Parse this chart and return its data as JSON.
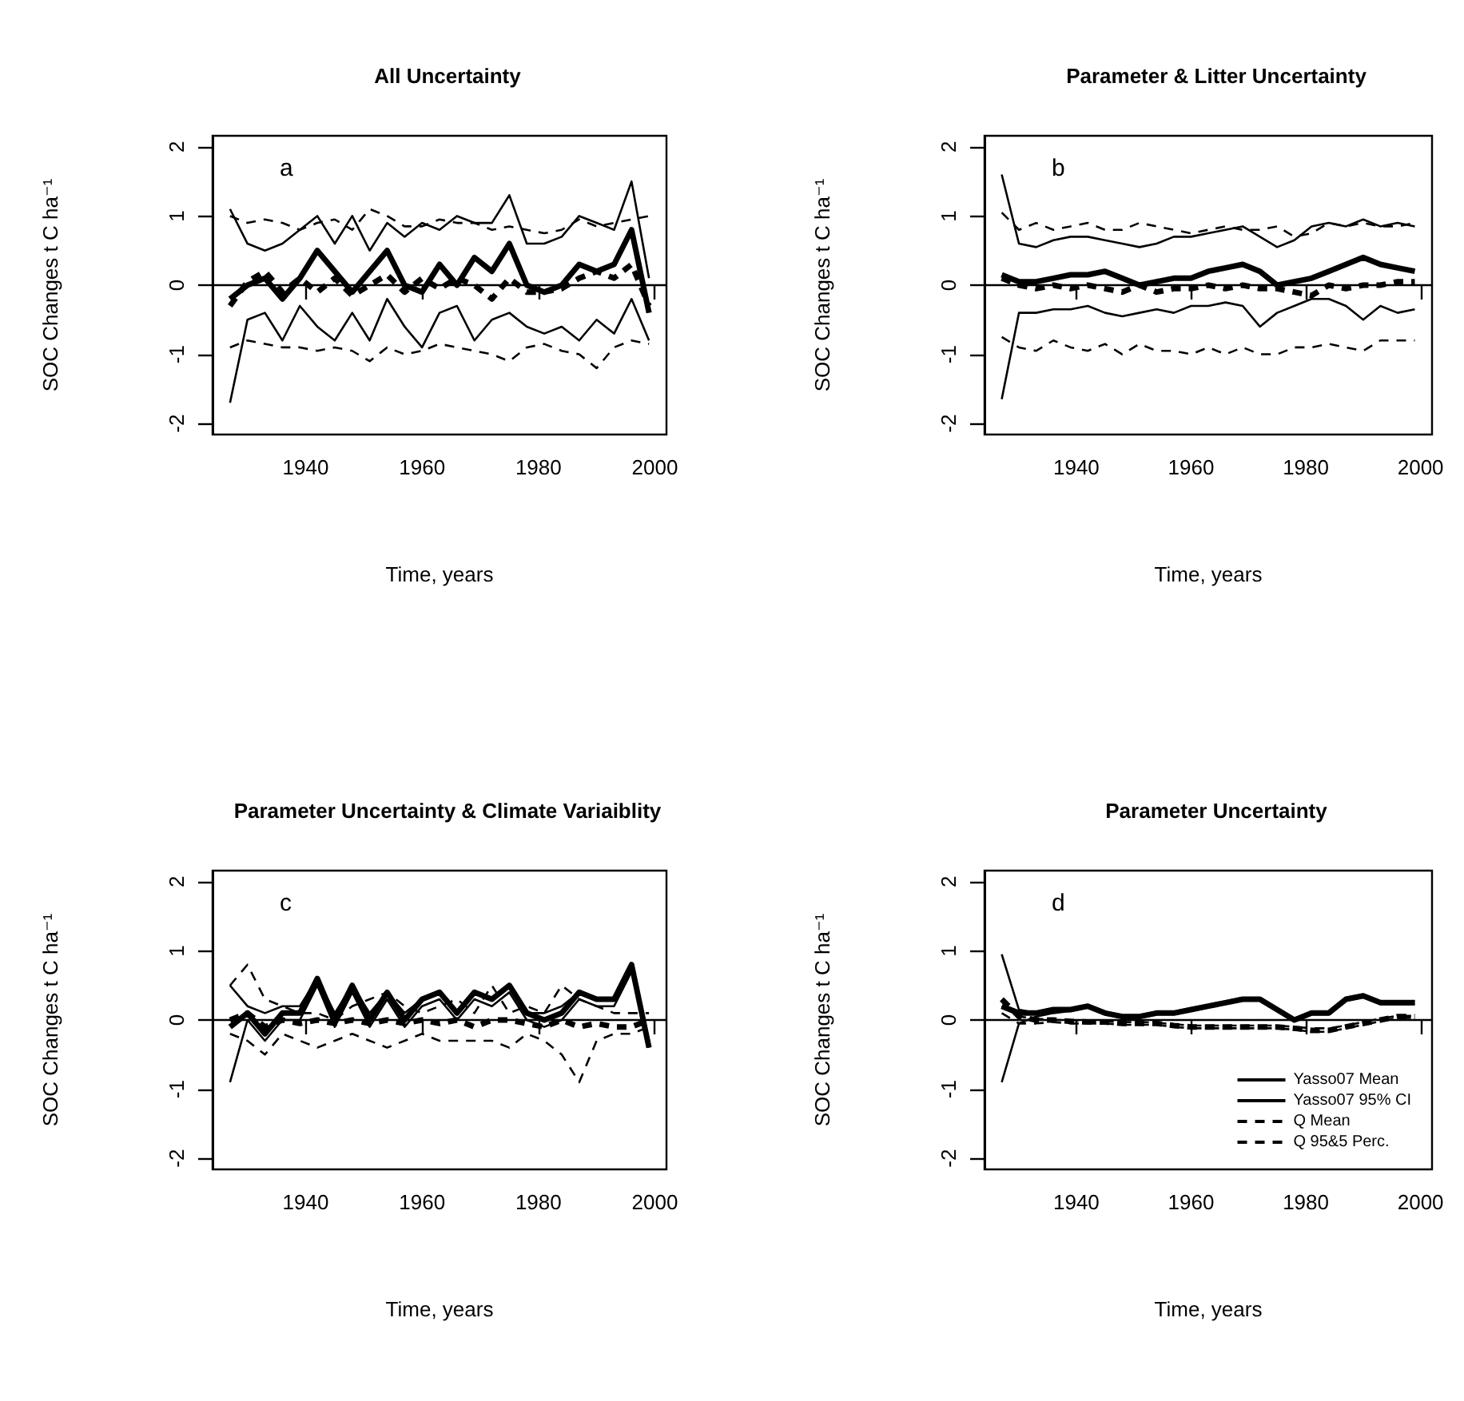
{
  "chart_data": [
    {
      "type": "line",
      "title": "All Uncertainty",
      "xlabel": "Time, years",
      "ylabel": "SOC Changes t C ha⁻¹",
      "annotations": [
        "a"
      ],
      "x": [
        1927,
        1930,
        1933,
        1936,
        1939,
        1942,
        1945,
        1948,
        1951,
        1954,
        1957,
        1960,
        1963,
        1966,
        1969,
        1972,
        1975,
        1978,
        1981,
        1984,
        1987,
        1990,
        1993,
        1996,
        1999
      ],
      "xlim": [
        1924,
        2002
      ],
      "xticks": [
        1940,
        1960,
        1980,
        2000
      ],
      "ylim": [
        -2.16,
        2.16
      ],
      "yticks": [
        -2,
        -1,
        0,
        1,
        2
      ],
      "ref_lines": [
        {
          "axis": "y",
          "value": 0,
          "color": "#000000"
        }
      ],
      "series": [
        {
          "color": "#000000",
          "line_style": "solid",
          "values": [
            -0.2,
            0.0,
            0.1,
            -0.2,
            0.1,
            0.5,
            0.2,
            -0.1,
            0.2,
            0.5,
            0.0,
            -0.1,
            0.3,
            0.0,
            0.4,
            0.2,
            0.6,
            0.0,
            -0.1,
            0.0,
            0.3,
            0.2,
            0.3,
            0.8,
            -0.4
          ]
        },
        {
          "color": "#000000",
          "line_style": "solid",
          "values": [
            1.1,
            0.6,
            0.5,
            0.6,
            0.8,
            1.0,
            0.6,
            1.0,
            0.5,
            0.9,
            0.7,
            0.9,
            0.8,
            1.0,
            0.9,
            0.9,
            1.3,
            0.6,
            0.6,
            0.7,
            1.0,
            0.9,
            0.8,
            1.5,
            0.1
          ]
        },
        {
          "color": "#000000",
          "line_style": "solid",
          "values": [
            -1.7,
            -0.5,
            -0.4,
            -0.8,
            -0.3,
            -0.6,
            -0.8,
            -0.4,
            -0.8,
            -0.2,
            -0.6,
            -0.9,
            -0.4,
            -0.3,
            -0.8,
            -0.5,
            -0.4,
            -0.6,
            -0.7,
            -0.6,
            -0.8,
            -0.5,
            -0.7,
            -0.2,
            -0.8
          ]
        },
        {
          "color": "#000000",
          "line_style": "dashed",
          "values": [
            -0.3,
            0.05,
            0.2,
            -0.1,
            0.1,
            -0.1,
            0.1,
            -0.15,
            0.0,
            0.15,
            -0.1,
            0.1,
            -0.05,
            0.1,
            0.0,
            -0.2,
            0.1,
            -0.1,
            -0.1,
            -0.05,
            0.1,
            0.2,
            0.1,
            0.3,
            -0.3
          ]
        },
        {
          "color": "#000000",
          "line_style": "dashed",
          "values": [
            1.0,
            0.9,
            0.95,
            0.9,
            0.8,
            0.9,
            0.95,
            0.8,
            1.1,
            1.0,
            0.85,
            0.85,
            0.95,
            0.9,
            0.9,
            0.8,
            0.85,
            0.8,
            0.75,
            0.8,
            0.95,
            0.85,
            0.9,
            0.95,
            1.0
          ]
        },
        {
          "color": "#000000",
          "line_style": "dashed",
          "values": [
            -0.9,
            -0.8,
            -0.85,
            -0.9,
            -0.9,
            -0.95,
            -0.9,
            -0.95,
            -1.1,
            -0.9,
            -1.0,
            -0.95,
            -0.85,
            -0.9,
            -0.95,
            -1.0,
            -1.1,
            -0.9,
            -0.85,
            -0.95,
            -1.0,
            -1.2,
            -0.9,
            -0.8,
            -0.85
          ]
        }
      ]
    },
    {
      "type": "line",
      "title": "Parameter & Litter Uncertainty",
      "xlabel": "Time, years",
      "ylabel": "SOC Changes t C ha⁻¹",
      "annotations": [
        "b"
      ],
      "x": [
        1927,
        1930,
        1933,
        1936,
        1939,
        1942,
        1945,
        1948,
        1951,
        1954,
        1957,
        1960,
        1963,
        1966,
        1969,
        1972,
        1975,
        1978,
        1981,
        1984,
        1987,
        1990,
        1993,
        1996,
        1999
      ],
      "xlim": [
        1924,
        2002
      ],
      "xticks": [
        1940,
        1960,
        1980,
        2000
      ],
      "ylim": [
        -2.16,
        2.16
      ],
      "yticks": [
        -2,
        -1,
        0,
        1,
        2
      ],
      "ref_lines": [
        {
          "axis": "y",
          "value": 0,
          "color": "#000000"
        }
      ],
      "series": [
        {
          "color": "#000000",
          "line_style": "solid",
          "values": [
            0.15,
            0.05,
            0.05,
            0.1,
            0.15,
            0.15,
            0.2,
            0.1,
            0.0,
            0.05,
            0.1,
            0.1,
            0.2,
            0.25,
            0.3,
            0.2,
            0.0,
            0.05,
            0.1,
            0.2,
            0.3,
            0.4,
            0.3,
            0.25,
            0.2
          ]
        },
        {
          "color": "#000000",
          "line_style": "solid",
          "values": [
            1.6,
            0.6,
            0.55,
            0.65,
            0.7,
            0.7,
            0.65,
            0.6,
            0.55,
            0.6,
            0.7,
            0.7,
            0.75,
            0.8,
            0.85,
            0.7,
            0.55,
            0.65,
            0.85,
            0.9,
            0.85,
            0.95,
            0.85,
            0.9,
            0.85
          ]
        },
        {
          "color": "#000000",
          "line_style": "solid",
          "values": [
            -1.65,
            -0.4,
            -0.4,
            -0.35,
            -0.35,
            -0.3,
            -0.4,
            -0.45,
            -0.4,
            -0.35,
            -0.4,
            -0.3,
            -0.3,
            -0.25,
            -0.3,
            -0.6,
            -0.4,
            -0.3,
            -0.2,
            -0.2,
            -0.3,
            -0.5,
            -0.3,
            -0.4,
            -0.35
          ]
        },
        {
          "color": "#000000",
          "line_style": "dashed",
          "values": [
            0.1,
            0.0,
            -0.05,
            0.0,
            -0.05,
            0.0,
            -0.05,
            -0.1,
            0.0,
            -0.1,
            -0.05,
            -0.05,
            0.0,
            -0.05,
            0.0,
            -0.05,
            -0.05,
            -0.1,
            -0.15,
            0.0,
            -0.05,
            0.0,
            0.0,
            0.05,
            0.05
          ]
        },
        {
          "color": "#000000",
          "line_style": "dashed",
          "values": [
            1.05,
            0.8,
            0.9,
            0.8,
            0.85,
            0.9,
            0.8,
            0.8,
            0.9,
            0.85,
            0.8,
            0.75,
            0.8,
            0.85,
            0.8,
            0.8,
            0.85,
            0.7,
            0.75,
            0.9,
            0.85,
            0.9,
            0.85,
            0.85,
            0.9
          ]
        },
        {
          "color": "#000000",
          "line_style": "dashed",
          "values": [
            -0.75,
            -0.9,
            -0.95,
            -0.8,
            -0.9,
            -0.95,
            -0.85,
            -1.0,
            -0.85,
            -0.95,
            -0.95,
            -1.0,
            -0.9,
            -1.0,
            -0.9,
            -1.0,
            -1.0,
            -0.9,
            -0.9,
            -0.85,
            -0.9,
            -0.95,
            -0.8,
            -0.8,
            -0.8
          ]
        }
      ]
    },
    {
      "type": "line",
      "title": "Parameter Uncertainty & Climate Variaiblity",
      "xlabel": "Time, years",
      "ylabel": "SOC Changes t C ha⁻¹",
      "annotations": [
        "c"
      ],
      "x": [
        1927,
        1930,
        1933,
        1936,
        1939,
        1942,
        1945,
        1948,
        1951,
        1954,
        1957,
        1960,
        1963,
        1966,
        1969,
        1972,
        1975,
        1978,
        1981,
        1984,
        1987,
        1990,
        1993,
        1996,
        1999
      ],
      "xlim": [
        1924,
        2002
      ],
      "xticks": [
        1940,
        1960,
        1980,
        2000
      ],
      "ylim": [
        -2.16,
        2.16
      ],
      "yticks": [
        -2,
        -1,
        0,
        1,
        2
      ],
      "ref_lines": [
        {
          "axis": "y",
          "value": 0,
          "color": "#000000"
        }
      ],
      "series": [
        {
          "color": "#000000",
          "line_style": "solid",
          "values": [
            -0.1,
            0.1,
            -0.2,
            0.1,
            0.1,
            0.6,
            0.0,
            0.5,
            0.0,
            0.4,
            0.0,
            0.3,
            0.4,
            0.1,
            0.4,
            0.3,
            0.5,
            0.1,
            0.0,
            0.1,
            0.4,
            0.3,
            0.3,
            0.8,
            -0.4
          ]
        },
        {
          "color": "#000000",
          "line_style": "solid",
          "values": [
            0.5,
            0.2,
            0.1,
            0.2,
            0.2,
            0.6,
            0.1,
            0.5,
            0.1,
            0.4,
            0.1,
            0.3,
            0.4,
            0.1,
            0.4,
            0.3,
            0.5,
            0.1,
            0.1,
            0.2,
            0.4,
            0.3,
            0.3,
            0.8,
            -0.3
          ]
        },
        {
          "color": "#000000",
          "line_style": "solid",
          "values": [
            -0.9,
            0.0,
            -0.3,
            0.0,
            0.0,
            0.5,
            -0.1,
            0.4,
            -0.1,
            0.3,
            -0.1,
            0.2,
            0.3,
            0.0,
            0.3,
            0.2,
            0.4,
            0.0,
            -0.1,
            0.0,
            0.3,
            0.2,
            0.2,
            0.7,
            -0.4
          ]
        },
        {
          "color": "#000000",
          "line_style": "dashed",
          "values": [
            0.0,
            0.1,
            -0.1,
            0.0,
            -0.05,
            0.0,
            -0.05,
            0.0,
            -0.05,
            0.0,
            -0.05,
            0.0,
            -0.05,
            0.0,
            -0.1,
            0.0,
            0.0,
            -0.05,
            -0.1,
            0.0,
            -0.1,
            -0.05,
            -0.1,
            -0.1,
            0.0
          ]
        },
        {
          "color": "#000000",
          "line_style": "dashed",
          "values": [
            0.5,
            0.8,
            0.3,
            0.2,
            0.1,
            0.1,
            0.0,
            0.2,
            0.3,
            0.4,
            0.2,
            0.1,
            0.2,
            0.3,
            0.1,
            0.5,
            0.1,
            0.2,
            0.1,
            0.5,
            0.3,
            0.2,
            0.1,
            0.1,
            0.1
          ]
        },
        {
          "color": "#000000",
          "line_style": "dashed",
          "values": [
            -0.2,
            -0.3,
            -0.5,
            -0.2,
            -0.3,
            -0.4,
            -0.3,
            -0.2,
            -0.3,
            -0.4,
            -0.3,
            -0.2,
            -0.3,
            -0.3,
            -0.3,
            -0.3,
            -0.4,
            -0.2,
            -0.3,
            -0.5,
            -0.9,
            -0.3,
            -0.2,
            -0.2,
            -0.1
          ]
        }
      ]
    },
    {
      "type": "line",
      "title": "Parameter Uncertainty",
      "xlabel": "Time, years",
      "ylabel": "SOC Changes t C ha⁻¹",
      "annotations": [
        "d"
      ],
      "legend": "bottom right",
      "x": [
        1927,
        1930,
        1933,
        1936,
        1939,
        1942,
        1945,
        1948,
        1951,
        1954,
        1957,
        1960,
        1963,
        1966,
        1969,
        1972,
        1975,
        1978,
        1981,
        1984,
        1987,
        1990,
        1993,
        1996,
        1999
      ],
      "xlim": [
        1924,
        2002
      ],
      "xticks": [
        1940,
        1960,
        1980,
        2000
      ],
      "ylim": [
        -2.16,
        2.16
      ],
      "yticks": [
        -2,
        -1,
        0,
        1,
        2
      ],
      "ref_lines": [
        {
          "axis": "y",
          "value": 0,
          "color": "#000000"
        }
      ],
      "series": [
        {
          "name": "Yasso07 Mean",
          "color": "#000000",
          "line_style": "solid",
          "values": [
            0.2,
            0.1,
            0.1,
            0.15,
            0.15,
            0.2,
            0.1,
            0.05,
            0.05,
            0.1,
            0.1,
            0.15,
            0.2,
            0.25,
            0.3,
            0.3,
            0.15,
            0.0,
            0.1,
            0.1,
            0.3,
            0.35,
            0.25,
            0.25,
            0.25
          ]
        },
        {
          "name": "Yasso07 95% CI",
          "color": "#000000",
          "line_style": "solid",
          "values": [
            0.95,
            0.15,
            0.1,
            0.15,
            0.17,
            0.22,
            0.12,
            0.07,
            0.07,
            0.12,
            0.12,
            0.17,
            0.22,
            0.27,
            0.32,
            0.32,
            0.17,
            0.02,
            0.12,
            0.12,
            0.32,
            0.37,
            0.27,
            0.27,
            0.27
          ]
        },
        {
          "color": "#000000",
          "line_style": "solid",
          "values": [
            -0.9,
            -0.05,
            0.05,
            0.1,
            0.13,
            0.18,
            0.08,
            0.03,
            0.03,
            0.08,
            0.08,
            0.13,
            0.18,
            0.23,
            0.28,
            0.28,
            0.13,
            -0.02,
            0.08,
            0.08,
            0.28,
            0.33,
            0.23,
            0.23,
            0.23
          ]
        },
        {
          "name": "Q Mean",
          "color": "#000000",
          "line_style": "dashed",
          "values": [
            0.3,
            0.05,
            0.0,
            0.0,
            -0.02,
            -0.03,
            -0.03,
            -0.05,
            -0.05,
            -0.05,
            -0.08,
            -0.1,
            -0.1,
            -0.1,
            -0.1,
            -0.1,
            -0.1,
            -0.12,
            -0.15,
            -0.15,
            -0.1,
            -0.05,
            0.0,
            0.05,
            0.05
          ]
        },
        {
          "name": "Q 95&5 Perc.",
          "color": "#000000",
          "line_style": "dashed",
          "values": [
            0.2,
            0.05,
            0.02,
            0.0,
            0.0,
            -0.02,
            -0.02,
            -0.03,
            -0.03,
            -0.04,
            -0.06,
            -0.08,
            -0.08,
            -0.08,
            -0.08,
            -0.08,
            -0.08,
            -0.1,
            -0.12,
            -0.12,
            -0.08,
            -0.03,
            0.02,
            0.06,
            0.06
          ]
        },
        {
          "color": "#000000",
          "line_style": "dashed",
          "values": [
            0.1,
            -0.05,
            -0.05,
            -0.03,
            -0.05,
            -0.05,
            -0.05,
            -0.07,
            -0.07,
            -0.07,
            -0.1,
            -0.12,
            -0.12,
            -0.12,
            -0.12,
            -0.12,
            -0.12,
            -0.14,
            -0.17,
            -0.17,
            -0.12,
            -0.07,
            -0.02,
            0.03,
            0.03
          ]
        }
      ]
    }
  ]
}
